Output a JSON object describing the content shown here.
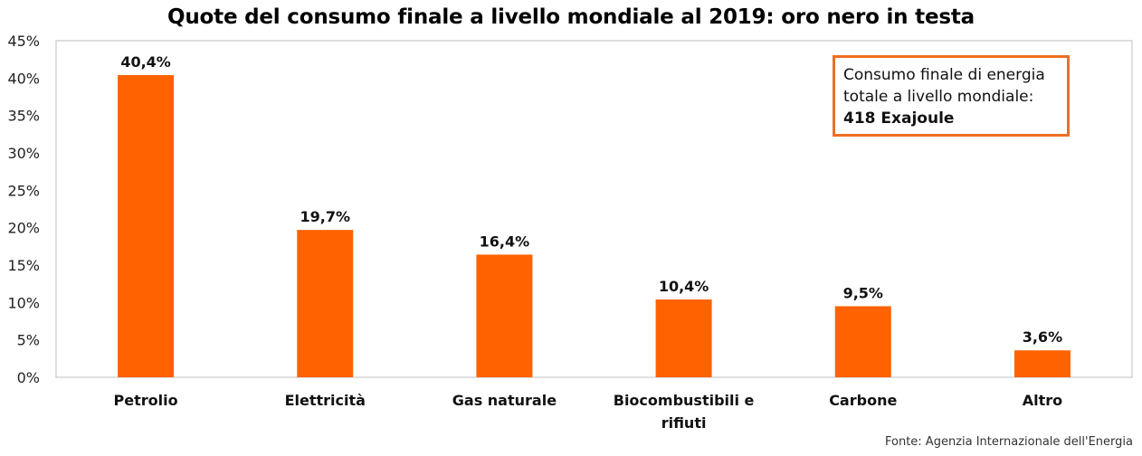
{
  "title": "Quote del consumo finale a livello mondiale al 2019: oro nero in testa",
  "callout": {
    "line1": "Consumo finale di energia",
    "line2": "totale a livello mondiale:",
    "line3": "418 Exajoule"
  },
  "source": "Fonte: Agenzia Internazionale dell'Energia",
  "colors": {
    "bar": "#ff6200",
    "callout_border": "#ee6f22",
    "axis": "#bfbfbf"
  },
  "chart_data": {
    "type": "bar",
    "title": "Quote del consumo finale a livello mondiale al 2019: oro nero in testa",
    "xlabel": "",
    "ylabel": "",
    "categories": [
      [
        "Petrolio"
      ],
      [
        "Elettricità"
      ],
      [
        "Gas naturale"
      ],
      [
        "Biocombustibili e",
        "rifiuti"
      ],
      [
        "Carbone"
      ],
      [
        "Altro"
      ]
    ],
    "values": [
      40.4,
      19.7,
      16.4,
      10.4,
      9.5,
      3.6
    ],
    "data_labels": [
      "40,4%",
      "19,7%",
      "16,4%",
      "10,4%",
      "9,5%",
      "3,6%"
    ],
    "yticks": [
      "0%",
      "5%",
      "10%",
      "15%",
      "20%",
      "25%",
      "30%",
      "35%",
      "40%",
      "45%"
    ],
    "ylim": [
      0,
      45
    ],
    "grid": false,
    "legend": "none"
  }
}
